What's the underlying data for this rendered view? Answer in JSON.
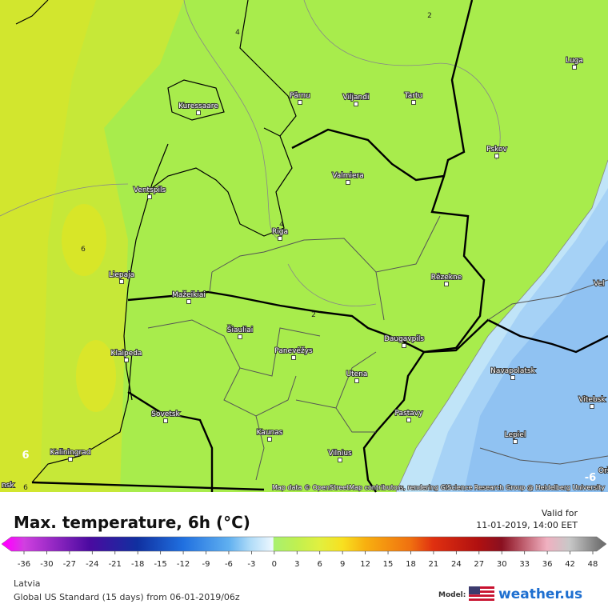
{
  "map": {
    "cities": [
      "Pärnu",
      "Viljandi",
      "Tartu",
      "Kuressaare",
      "Luga",
      "Pskov",
      "Valmiera",
      "Ventspils",
      "Riga",
      "Liepaja",
      "Rēzekne",
      "Mažeikiai",
      "Šiauliai",
      "Panevėžys",
      "Daugavpils",
      "Klaipeda",
      "Utena",
      "Navapolatsk",
      "Vitebsk",
      "Sovetsk",
      "Pastavy",
      "Kaunas",
      "Lepiel",
      "Kaliningrad",
      "Vilnius"
    ],
    "edge_labels": [
      "Orš",
      "Vel",
      "nsk"
    ],
    "contour_labels": [
      4,
      2,
      4,
      6,
      2,
      6,
      6,
      -6
    ],
    "attribution": "Map data © OpenStreetMap contributors, rendering GIScience Research Group @ Heidelberg University"
  },
  "header": {
    "title": "Max. temperature, 6h (°C)",
    "valid_label": "Valid for",
    "valid_time": "11-01-2019, 14:00 EET"
  },
  "legend": {
    "ticks": [
      -36,
      -30,
      -27,
      -24,
      -21,
      -18,
      -15,
      -12,
      -9,
      -6,
      -3,
      0,
      3,
      6,
      9,
      12,
      15,
      18,
      21,
      24,
      27,
      30,
      33,
      36,
      42,
      48
    ]
  },
  "footer": {
    "region": "Latvia",
    "model_run": "Global US Standard (15 days) from 06-01-2019/06z",
    "model_label": "Model:",
    "brand": "weather.us"
  }
}
